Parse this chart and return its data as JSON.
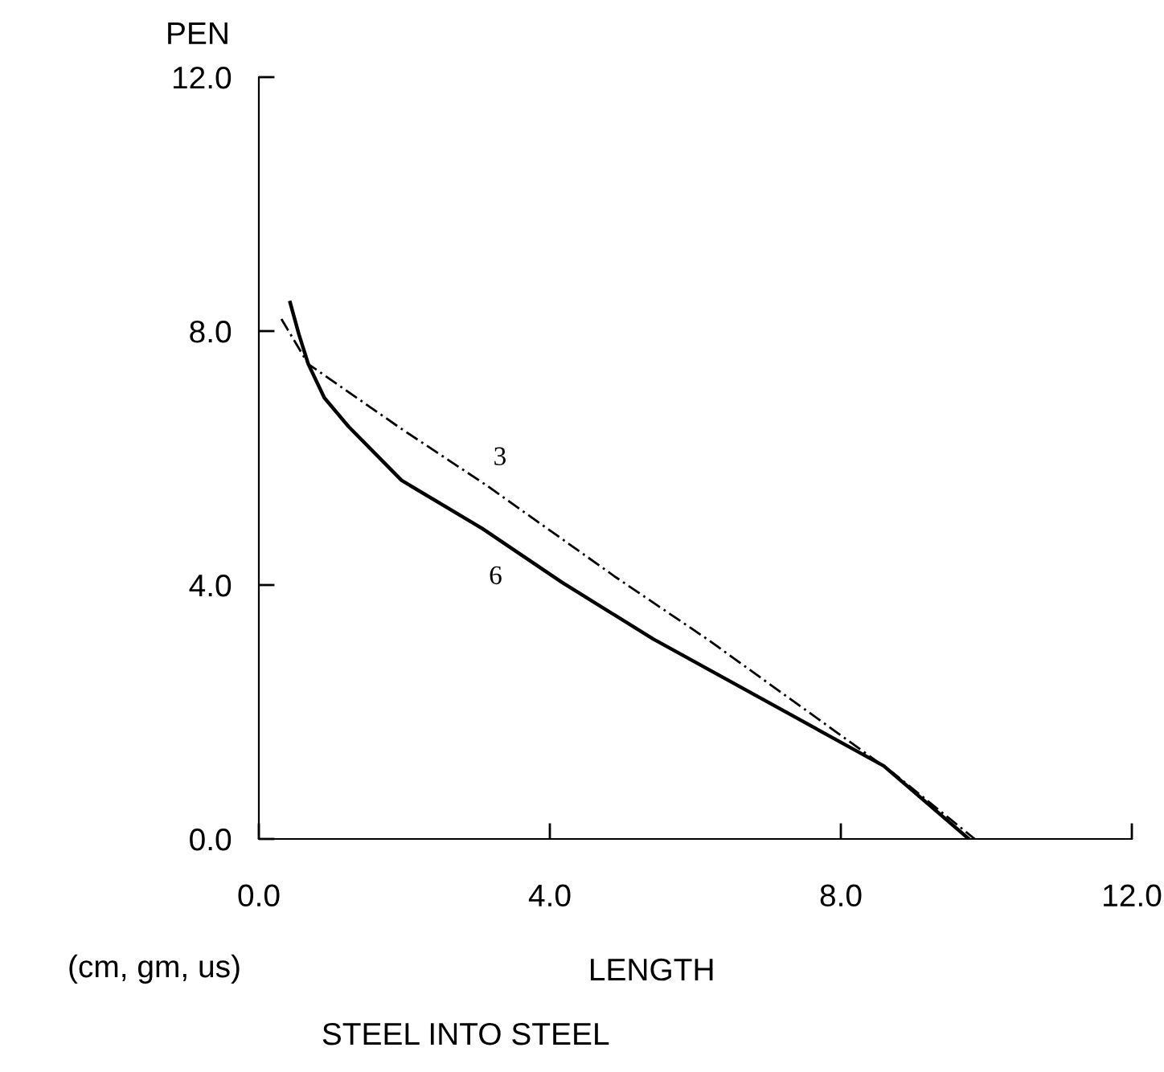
{
  "chart_data": {
    "type": "line",
    "title": "STEEL INTO STEEL",
    "xlabel": "LENGTH",
    "ylabel": "PEN",
    "annotations": [
      "(cm, gm, us)"
    ],
    "series": [
      {
        "name": "3",
        "color": "#000000",
        "line_style": "dashed",
        "x": [
          0.31,
          0.68,
          1.96,
          3.13,
          4.91,
          6.16,
          8.73,
          9.84
        ],
        "values": [
          8.19,
          7.48,
          6.46,
          5.57,
          4.12,
          3.15,
          1.03,
          0.0
        ]
      },
      {
        "name": "6",
        "color": "#000000",
        "line_style": "solid",
        "x": [
          0.43,
          0.55,
          0.68,
          0.9,
          1.23,
          1.96,
          3.07,
          4.17,
          5.42,
          8.59,
          9.76
        ],
        "values": [
          8.45,
          7.95,
          7.48,
          6.95,
          6.5,
          5.65,
          4.89,
          4.04,
          3.15,
          1.15,
          0.0
        ]
      }
    ],
    "xlim": [
      0,
      12
    ],
    "ylim": [
      0,
      12
    ],
    "xticks": [
      {
        "value": 0,
        "label": "0.0"
      },
      {
        "value": 4,
        "label": "4.0"
      },
      {
        "value": 8,
        "label": "8.0"
      },
      {
        "value": 12,
        "label": "12.0"
      }
    ],
    "yticks": [
      {
        "value": 0,
        "label": "0.0"
      },
      {
        "value": 4,
        "label": "4.0"
      },
      {
        "value": 8,
        "label": "8.0"
      },
      {
        "value": 12,
        "label": "12.0"
      }
    ],
    "grid": false,
    "legend": false,
    "marker": "none"
  }
}
